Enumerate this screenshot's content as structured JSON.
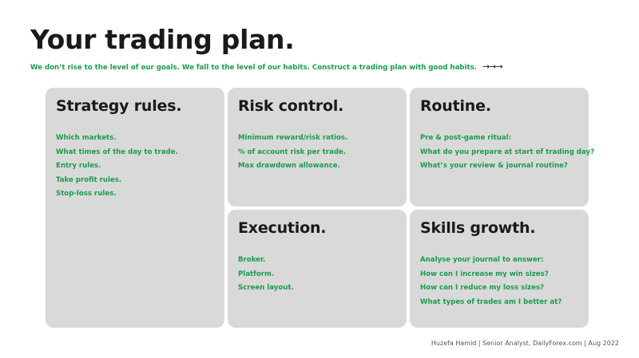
{
  "title": "Your trading plan.",
  "subtitle": {
    "text": "We don’t rise to the level of our goals.  We fall to the level of our habits.  Construct a trading plan with good habits.",
    "arrows": "→→→"
  },
  "cards": [
    {
      "title": "Strategy rules.",
      "items": [
        "Which markets.",
        "What times of the day to trade.",
        "Entry rules.",
        "Take profit rules.",
        "Stop-loss rules."
      ]
    },
    {
      "title": "Risk control.",
      "items": [
        "Minimum reward/risk ratios.",
        "% of account risk per trade.",
        "Max drawdown allowance."
      ]
    },
    {
      "title": "Routine.",
      "items": [
        "Pre & post-game ritual:",
        "What do you prepare at start of trading day?",
        "What’s your review & journal routine?"
      ]
    },
    {
      "title": "Execution.",
      "items": [
        "Broker.",
        "Platform.",
        "Screen layout."
      ]
    },
    {
      "title": "Skills growth.",
      "items": [
        "Analyse your journal to answer:",
        "How can I increase my win sizes?",
        "How can I reduce my loss sizes?",
        "What types of trades am I better at?"
      ]
    }
  ],
  "footer": "Huzefa Hamid  |  Senior Analyst, DailyForex.com  |  Aug 2022",
  "colors": {
    "accent_green": "#1a9c4e",
    "card_background": "#d9d9d9",
    "heading": "#1a1a1a"
  }
}
